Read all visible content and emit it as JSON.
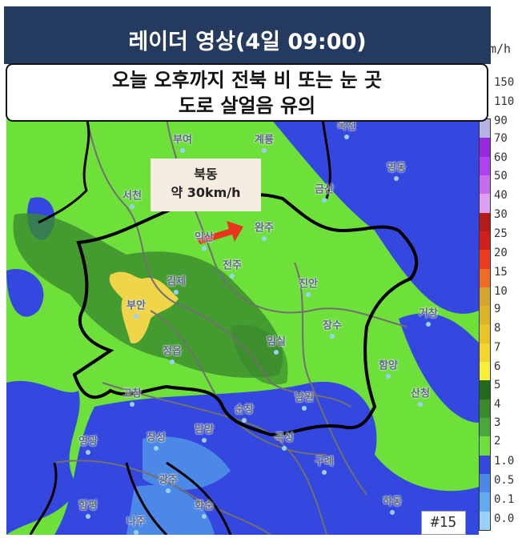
{
  "header": {
    "title": "레이더 영상(4일 09:00)"
  },
  "subtitle": {
    "line1": "오늘 오후까지 전북 비 또는 눈 곳",
    "line2": "도로 살얼음 유의"
  },
  "callout": {
    "line1": "북동",
    "line2": "약 30km/h",
    "arrow_color": "#e8341c"
  },
  "frame_number": "#15",
  "legend": {
    "unit": "m/h",
    "labels": [
      "150",
      "110",
      "90",
      "70",
      "60",
      "50",
      "40",
      "30",
      "25",
      "20",
      "15",
      "10",
      "9",
      "8",
      "7",
      "6",
      "5",
      "4",
      "3",
      "2",
      "1.0",
      "0.5",
      "0.1",
      "0.0"
    ],
    "colors": [
      "#ffffff",
      "#b4b4e4",
      "#9a28e0",
      "#b040f0",
      "#c66cf0",
      "#dca0f4",
      "#b41c1c",
      "#d21e1e",
      "#ee3a20",
      "#f06a28",
      "#d6a632",
      "#dcb428",
      "#e8c428",
      "#f4d430",
      "#f8f038",
      "#226a1e",
      "#3a8a2e",
      "#4aa83a",
      "#6ee03a",
      "#3448e0",
      "#4c88e6",
      "#64aaf0",
      "#9ad0ff",
      "#ffffff"
    ]
  },
  "map": {
    "colors": {
      "light_green": "#6ee03a",
      "dark_green": "#3a8a2e",
      "blue": "#3448e0",
      "light_blue": "#4c88e6",
      "yellow": "#f0d44a",
      "border": "#000000",
      "district": "#707070"
    },
    "cities": [
      "부여",
      "계룡",
      "옥천",
      "영동",
      "서천",
      "금산",
      "익산",
      "완주",
      "김제",
      "전주",
      "부안",
      "진안",
      "장수",
      "임실",
      "거창",
      "정읍",
      "함양",
      "고창",
      "남원",
      "산청",
      "순창",
      "담양",
      "장성",
      "영광",
      "곡성",
      "구례",
      "광주",
      "함평",
      "화순",
      "나주",
      "하동"
    ]
  }
}
